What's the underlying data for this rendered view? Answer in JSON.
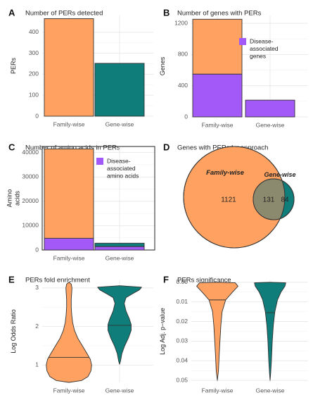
{
  "colors": {
    "orange": "#FFA261",
    "teal": "#0F7D7A",
    "purple": "#A259F7",
    "overlap": "#8C8A6E",
    "grid": "#E6E6E6",
    "axis_text": "#555555",
    "outline": "#333333"
  },
  "chart_data": [
    {
      "panel": "A",
      "type": "bar",
      "title": "Number of PERs detected",
      "ylabel": "PERs",
      "categories": [
        "Family-wise",
        "Gene-wise"
      ],
      "values": [
        465,
        252
      ],
      "ylim": [
        0,
        480
      ],
      "yticks": [
        0,
        100,
        200,
        300,
        400
      ],
      "ytick_labels": [
        "0",
        "100",
        "200",
        "300",
        "400"
      ],
      "xtick_labels": [
        "Family-wise",
        "Gene-wise"
      ],
      "grid": true
    },
    {
      "panel": "B",
      "type": "bar",
      "title": "Number of genes with PERs",
      "ylabel": "Genes",
      "categories": [
        "Family-wise",
        "Gene-wise"
      ],
      "totals": [
        1252,
        215
      ],
      "series": [
        {
          "name": "Disease-associated genes",
          "values": [
            548,
            215
          ]
        }
      ],
      "legend": {
        "lines": [
          "Disease-",
          "associated",
          "genes"
        ],
        "placement": "top-right"
      },
      "ylim": [
        0,
        1300
      ],
      "yticks": [
        0,
        400,
        800,
        1200
      ],
      "ytick_labels": [
        "0",
        "400",
        "800",
        "1200"
      ],
      "xtick_labels": [
        "Family-wise",
        "Gene-wise"
      ],
      "grid": true
    },
    {
      "panel": "C",
      "type": "bar",
      "title": "Number of amino acids in PERs",
      "ylabel": "Amino acids",
      "ylabel_lines": [
        "Amino",
        "acids"
      ],
      "categories": [
        "Family-wise",
        "Gene-wise"
      ],
      "totals": [
        41500,
        2800
      ],
      "series": [
        {
          "name": "Disease-associated amino acids",
          "values": [
            4800,
            1400
          ]
        }
      ],
      "legend": {
        "lines": [
          "Disease-",
          "associated",
          "amino acids"
        ],
        "placement": "top-right"
      },
      "ylim": [
        0,
        42500
      ],
      "yticks": [
        0,
        10000,
        20000,
        30000,
        40000
      ],
      "ytick_labels": [
        "0",
        "10000",
        "20000",
        "30000",
        "40000"
      ],
      "xtick_labels": [
        "Family-wise",
        "Gene-wise"
      ],
      "grid": true
    },
    {
      "panel": "D",
      "type": "venn",
      "title": "Genes with PERs by approach",
      "sets": [
        {
          "name": "Family-wise",
          "only": 1121
        },
        {
          "name": "Gene-wise",
          "only": 84
        }
      ],
      "intersection": 131
    },
    {
      "panel": "E",
      "type": "violin",
      "title": "PERs fold enrichment",
      "ylabel": "Log Odds Ratio",
      "categories": [
        "Family-wise",
        "Gene-wise"
      ],
      "ylim": [
        0.55,
        3.2
      ],
      "yticks": [
        1,
        2,
        3
      ],
      "ytick_labels": [
        "1",
        "2",
        "3"
      ],
      "xtick_labels": [
        "Family-wise",
        "Gene-wise"
      ],
      "violins": [
        {
          "name": "Family-wise",
          "median": 1.2,
          "profile": [
            [
              0.55,
              0.0
            ],
            [
              0.6,
              0.55
            ],
            [
              0.7,
              0.82
            ],
            [
              0.85,
              0.95
            ],
            [
              1.0,
              0.98
            ],
            [
              1.15,
              0.92
            ],
            [
              1.3,
              0.78
            ],
            [
              1.5,
              0.58
            ],
            [
              1.7,
              0.38
            ],
            [
              1.9,
              0.24
            ],
            [
              2.1,
              0.16
            ],
            [
              2.3,
              0.12
            ],
            [
              2.5,
              0.1
            ],
            [
              2.7,
              0.1
            ],
            [
              2.9,
              0.12
            ],
            [
              3.0,
              0.13
            ],
            [
              3.1,
              0.1
            ],
            [
              3.15,
              0.0
            ]
          ]
        },
        {
          "name": "Gene-wise",
          "median": 2.03,
          "profile": [
            [
              1.02,
              0.0
            ],
            [
              1.1,
              0.04
            ],
            [
              1.3,
              0.1
            ],
            [
              1.5,
              0.22
            ],
            [
              1.7,
              0.38
            ],
            [
              1.9,
              0.5
            ],
            [
              2.05,
              0.5
            ],
            [
              2.2,
              0.42
            ],
            [
              2.4,
              0.28
            ],
            [
              2.6,
              0.2
            ],
            [
              2.75,
              0.28
            ],
            [
              2.85,
              0.55
            ],
            [
              2.95,
              0.85
            ],
            [
              3.02,
              0.95
            ],
            [
              3.06,
              0.0
            ]
          ]
        }
      ],
      "grid": true
    },
    {
      "panel": "F",
      "type": "violin",
      "title": "PERs significance",
      "ylabel": "Log Adj. p-value",
      "ylabel_display": "Log Adj. p−value",
      "categories": [
        "Family-wise",
        "Gene-wise"
      ],
      "ylim": [
        0.051,
        -0.001
      ],
      "reversed": true,
      "yticks": [
        0.0,
        0.01,
        0.02,
        0.03,
        0.04,
        0.05
      ],
      "ytick_labels": [
        "0.00",
        "0.01",
        "0.02",
        "0.03",
        "0.04",
        "0.05"
      ],
      "xtick_labels": [
        "Family-wise",
        "Gene-wise"
      ],
      "violins": [
        {
          "name": "Family-wise",
          "median": 0.009,
          "profile": [
            [
              0.0,
              0.0
            ],
            [
              0.0003,
              0.82
            ],
            [
              0.002,
              0.95
            ],
            [
              0.005,
              0.7
            ],
            [
              0.009,
              0.38
            ],
            [
              0.015,
              0.22
            ],
            [
              0.022,
              0.16
            ],
            [
              0.03,
              0.12
            ],
            [
              0.038,
              0.08
            ],
            [
              0.045,
              0.05
            ],
            [
              0.05,
              0.0
            ]
          ]
        },
        {
          "name": "Gene-wise",
          "median": 0.0155,
          "profile": [
            [
              0.0,
              0.0
            ],
            [
              0.0003,
              0.72
            ],
            [
              0.002,
              0.68
            ],
            [
              0.005,
              0.5
            ],
            [
              0.009,
              0.34
            ],
            [
              0.015,
              0.22
            ],
            [
              0.022,
              0.15
            ],
            [
              0.03,
              0.1
            ],
            [
              0.04,
              0.06
            ],
            [
              0.046,
              0.03
            ],
            [
              0.05,
              0.0
            ]
          ]
        }
      ],
      "grid": true
    }
  ]
}
